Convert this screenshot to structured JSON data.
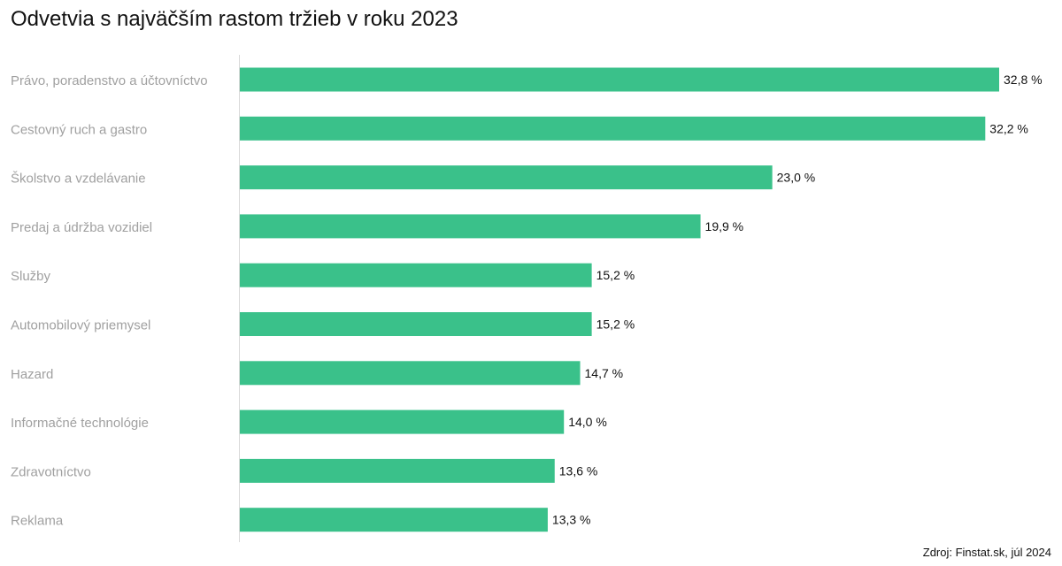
{
  "chart_data": {
    "type": "bar",
    "orientation": "horizontal",
    "title": "Odvetvia s najväčším rastom tržieb v roku 2023",
    "categories": [
      "Právo, poradenstvo a účtovníctvo",
      "Cestovný ruch a gastro",
      "Školstvo a vzdelávanie",
      "Predaj a údržba vozidiel",
      "Služby",
      "Automobilový priemysel",
      "Hazard",
      "Informačné technológie",
      "Zdravotníctvo",
      "Reklama"
    ],
    "values": [
      32.8,
      32.2,
      23.0,
      19.9,
      15.2,
      15.2,
      14.7,
      14.0,
      13.6,
      13.3
    ],
    "value_labels": [
      "32,8 %",
      "32,2 %",
      "23,0 %",
      "19,9 %",
      "15,2 %",
      "15,2 %",
      "14,7 %",
      "14,0 %",
      "13,6 %",
      "13,3 %"
    ],
    "xlim": [
      0,
      32.8
    ],
    "xlabel": "",
    "ylabel": "",
    "grid": false,
    "legend": "none",
    "bar_color": "#3ac18a",
    "category_label_color": "#a0a0a0",
    "value_label_color": "#111111",
    "axis_color": "#d9d9d9"
  },
  "footer": {
    "source": "Zdroj: Finstat.sk, júl 2024"
  }
}
